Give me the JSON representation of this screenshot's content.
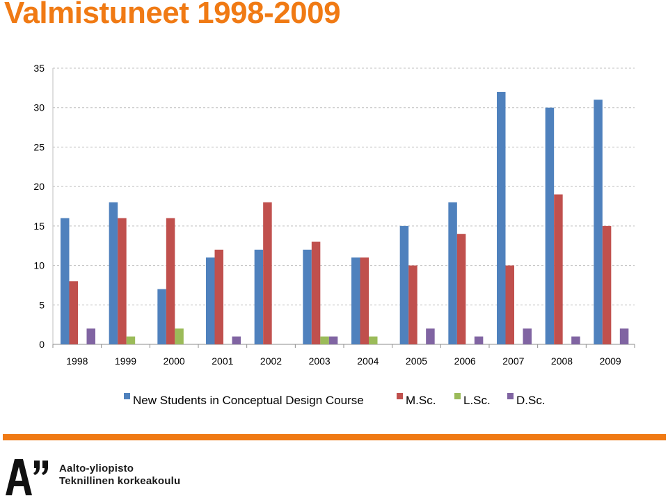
{
  "page": {
    "title": "Valmistuneet 1998-2009"
  },
  "chart_data": {
    "type": "bar",
    "categories": [
      "1998",
      "1999",
      "2000",
      "2001",
      "2002",
      "2003",
      "2004",
      "2005",
      "2006",
      "2007",
      "2008",
      "2009"
    ],
    "series": [
      {
        "name": "New Students in Conceptual Design Course",
        "color": "#4f81bd",
        "values": [
          16,
          18,
          7,
          11,
          12,
          12,
          11,
          15,
          18,
          32,
          30,
          31
        ]
      },
      {
        "name": "M.Sc.",
        "color": "#c0504d",
        "values": [
          8,
          16,
          16,
          12,
          18,
          13,
          11,
          10,
          14,
          10,
          19,
          15
        ]
      },
      {
        "name": "L.Sc.",
        "color": "#9bbb59",
        "values": [
          0,
          1,
          2,
          0,
          0,
          1,
          1,
          0,
          0,
          0,
          0,
          0
        ]
      },
      {
        "name": "D.Sc.",
        "color": "#8064a2",
        "values": [
          2,
          0,
          0,
          1,
          0,
          1,
          0,
          2,
          1,
          2,
          1,
          2
        ]
      }
    ],
    "ylim": [
      0,
      35
    ],
    "yticks": [
      0,
      5,
      10,
      15,
      20,
      25,
      30,
      35
    ],
    "grid": true,
    "legend": "bottom"
  },
  "footer": {
    "brand_name": "Aalto-yliopisto",
    "brand_sub": "Teknillinen korkeakoulu",
    "accent": "#f07a14"
  }
}
